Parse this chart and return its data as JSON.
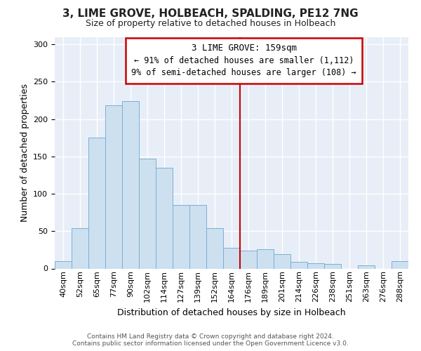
{
  "title": "3, LIME GROVE, HOLBEACH, SPALDING, PE12 7NG",
  "subtitle": "Size of property relative to detached houses in Holbeach",
  "xlabel": "Distribution of detached houses by size in Holbeach",
  "ylabel": "Number of detached properties",
  "bar_labels": [
    "40sqm",
    "52sqm",
    "65sqm",
    "77sqm",
    "90sqm",
    "102sqm",
    "114sqm",
    "127sqm",
    "139sqm",
    "152sqm",
    "164sqm",
    "176sqm",
    "189sqm",
    "201sqm",
    "214sqm",
    "226sqm",
    "238sqm",
    "251sqm",
    "263sqm",
    "276sqm",
    "288sqm"
  ],
  "bar_values": [
    10,
    54,
    175,
    218,
    224,
    147,
    135,
    85,
    85,
    54,
    28,
    24,
    26,
    19,
    9,
    7,
    6,
    0,
    4,
    0,
    10
  ],
  "bar_color": "#cde0f0",
  "bar_edge_color": "#7bafd4",
  "ylim": [
    0,
    310
  ],
  "yticks": [
    0,
    50,
    100,
    150,
    200,
    250,
    300
  ],
  "vline_x": 10.5,
  "vline_color": "#cc0000",
  "annotation_title": "3 LIME GROVE: 159sqm",
  "annotation_line1": "← 91% of detached houses are smaller (1,112)",
  "annotation_line2": "9% of semi-detached houses are larger (108) →",
  "annotation_box_color": "#ffffff",
  "annotation_box_edge": "#cc0000",
  "footer_line1": "Contains HM Land Registry data © Crown copyright and database right 2024.",
  "footer_line2": "Contains public sector information licensed under the Open Government Licence v3.0.",
  "figure_background": "#ffffff",
  "plot_background": "#e8eef7",
  "grid_color": "#ffffff",
  "title_fontsize": 11,
  "subtitle_fontsize": 9,
  "ylabel_fontsize": 9,
  "xlabel_fontsize": 9,
  "tick_fontsize": 8,
  "footer_fontsize": 6.5
}
